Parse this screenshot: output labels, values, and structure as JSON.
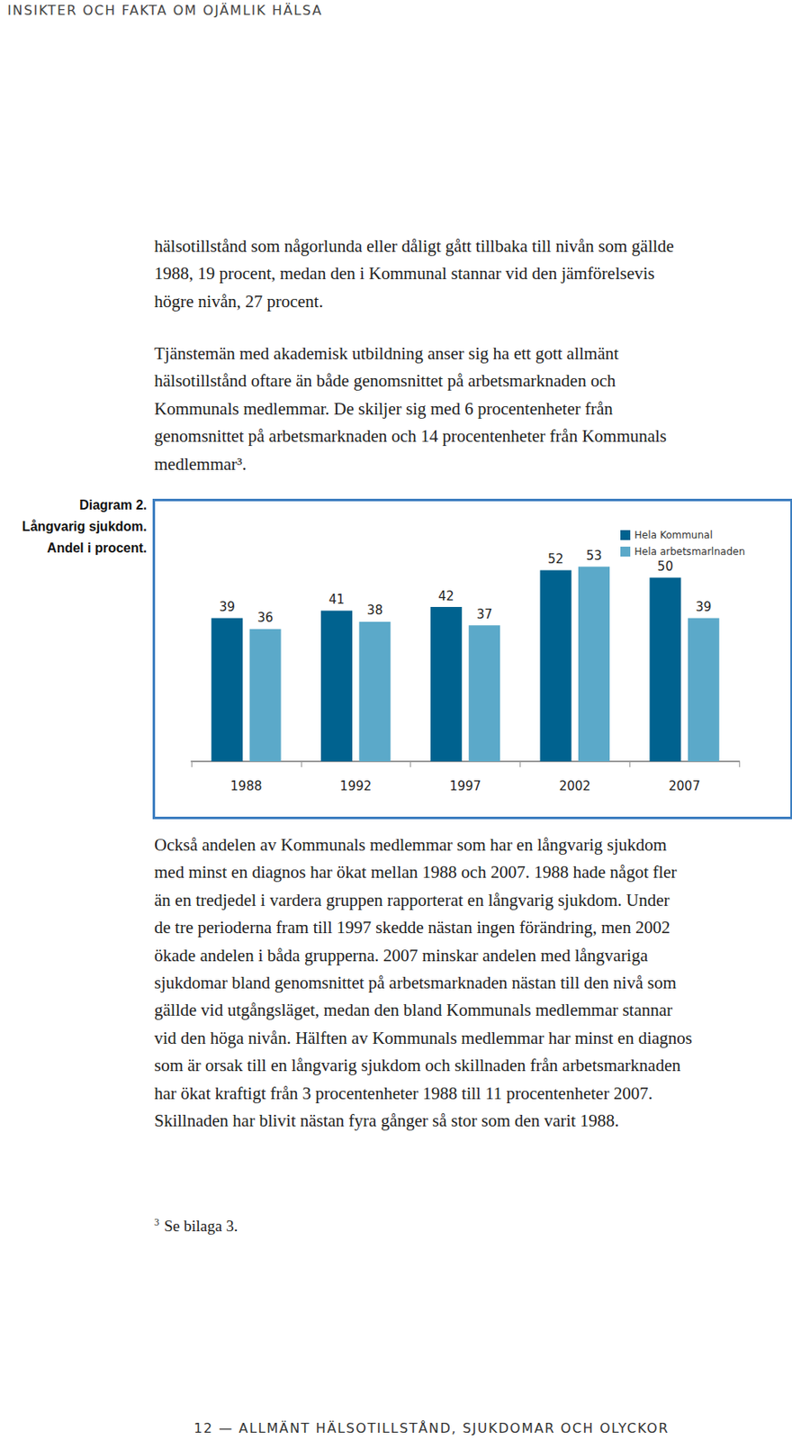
{
  "header": "INSIKTER OCH FAKTA OM OJÄMLIK HÄLSA",
  "paragraphs": [
    [
      "hälsotillstånd som någorlunda eller dåligt gått tillbaka till nivån som gällde",
      "1988, 19 procent, medan den i Kommunal stannar vid den jämförelsevis",
      "högre nivån, 27 procent."
    ],
    [
      "Tjänstemän med akademisk utbildning anser sig ha ett gott allmänt",
      "hälsotillstånd oftare än både genomsnittet på arbetsmarknaden och",
      "Kommunals medlemmar. De skiljer sig med 6 procentenheter från",
      "genomsnittet på arbetsmarknaden och 14 procentenheter från Kommunals",
      "medlemmar³."
    ]
  ],
  "caption": [
    "Diagram 2.",
    "Långvarig sjukdom.",
    "Andel i procent."
  ],
  "chart_data": {
    "type": "bar",
    "categories": [
      "1988",
      "1992",
      "1997",
      "2002",
      "2007"
    ],
    "series": [
      {
        "name": "Hela Kommunal",
        "color": "#00628f",
        "values": [
          39,
          41,
          42,
          52,
          50
        ]
      },
      {
        "name": "Hela arbetsmarlnaden",
        "color": "#5ba9c9",
        "values": [
          36,
          38,
          37,
          53,
          39
        ]
      }
    ],
    "ylim": [
      0,
      60
    ],
    "grid": false,
    "legend": "top-right",
    "data_labels": true,
    "tick_labels": "x"
  },
  "body_after": [
    "Också andelen av Kommunals medlemmar som har en långvarig sjukdom",
    "med minst en diagnos har ökat mellan 1988 och 2007. 1988 hade något fler",
    "än en tredjedel i vardera gruppen rapporterat en långvarig sjukdom. Under",
    "de tre perioderna fram till 1997 skedde nästan ingen förändring, men 2002",
    "ökade andelen i båda grupperna. 2007 minskar andelen med långvariga",
    "sjukdomar bland genomsnittet på arbetsmarknaden nästan till den nivå som",
    "gällde vid utgångsläget, medan den bland Kommunals medlemmar stannar",
    "vid den höga nivån. Hälften av Kommunals medlemmar har minst en diagnos",
    "som är orsak till en långvarig sjukdom och skillnaden från arbetsmarknaden",
    "har ökat kraftigt från 3 procentenheter 1988 till 11 procentenheter 2007.",
    "Skillnaden har blivit nästan fyra gånger så stor som den varit 1988."
  ],
  "footnote": {
    "mark": "3",
    "text": "Se bilaga 3."
  },
  "footer": "12 — ALLMÄNT HÄLSOTILLSTÅND, SJUKDOMAR OCH OLYCKOR"
}
